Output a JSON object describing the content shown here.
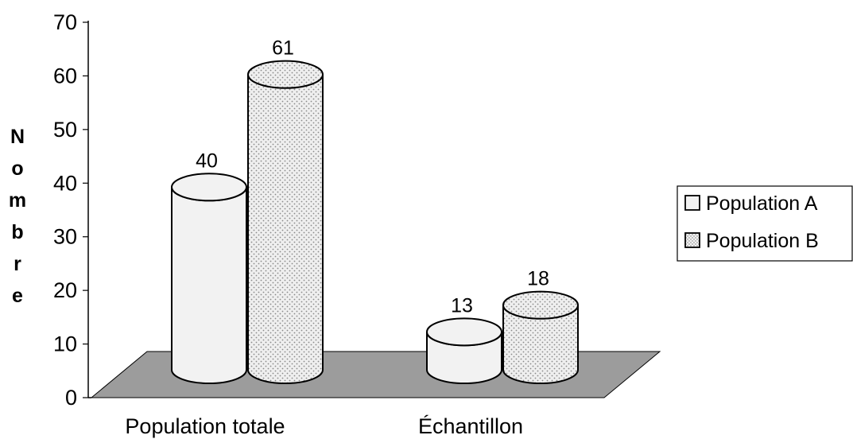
{
  "chart_data": {
    "type": "bar",
    "style": "3d-cylinder",
    "categories": [
      "Population totale",
      "Échantillon"
    ],
    "series": [
      {
        "name": "Population A",
        "values": [
          40,
          13
        ],
        "color": "#f2f2f2",
        "pattern": "plain"
      },
      {
        "name": "Population B",
        "values": [
          61,
          18
        ],
        "color": "#ececec",
        "pattern": "dotted"
      }
    ],
    "ylabel": "Nombre",
    "ylim": [
      0,
      70
    ],
    "yticks": [
      "0",
      "10",
      "20",
      "30",
      "40",
      "50",
      "60",
      "70"
    ],
    "data_labels": [
      [
        "40",
        "13"
      ],
      [
        "61",
        "18"
      ]
    ],
    "floor_color": "#9c9c9c",
    "legend_position": "right",
    "grid": false
  }
}
